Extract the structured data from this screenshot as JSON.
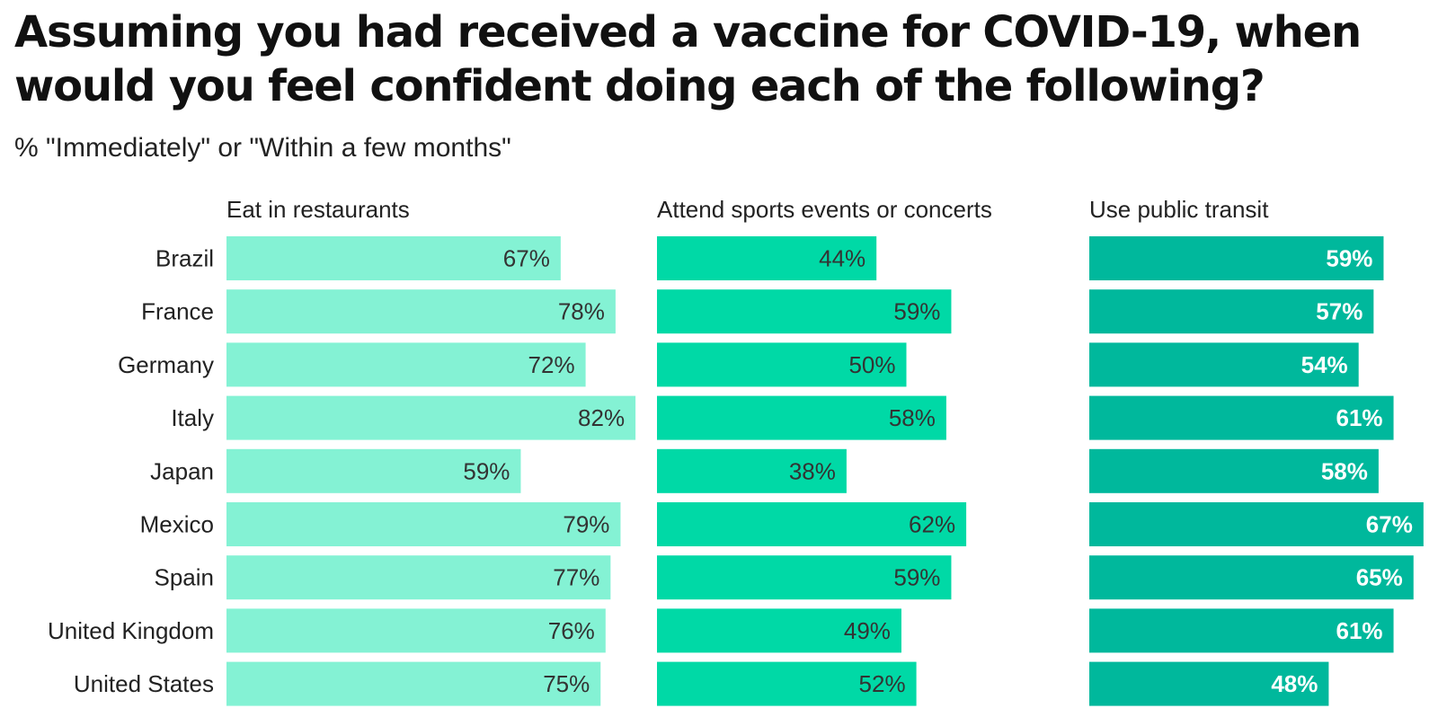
{
  "title": "Assuming you had received a vaccine for COVID-19, when would you feel confident doing each of the following?",
  "subtitle": "% \"Immediately\" or \"Within a few months\"",
  "chart_data": {
    "type": "bar",
    "orientation": "horizontal",
    "categories": [
      "Brazil",
      "France",
      "Germany",
      "Italy",
      "Japan",
      "Mexico",
      "Spain",
      "United Kingdom",
      "United States"
    ],
    "series": [
      {
        "name": "Eat in restaurants",
        "color": "#84f2d4",
        "label_color": "#333333",
        "values": [
          67,
          78,
          72,
          82,
          59,
          79,
          77,
          76,
          75
        ]
      },
      {
        "name": "Attend sports events or concerts",
        "color": "#00d9a6",
        "label_color": "#333333",
        "values": [
          44,
          59,
          50,
          58,
          38,
          62,
          59,
          49,
          52
        ]
      },
      {
        "name": "Use public transit",
        "color": "#00b89c",
        "label_color": "#ffffff",
        "values": [
          59,
          57,
          54,
          61,
          58,
          67,
          65,
          61,
          48
        ]
      }
    ],
    "value_suffix": "%",
    "grid": false
  }
}
